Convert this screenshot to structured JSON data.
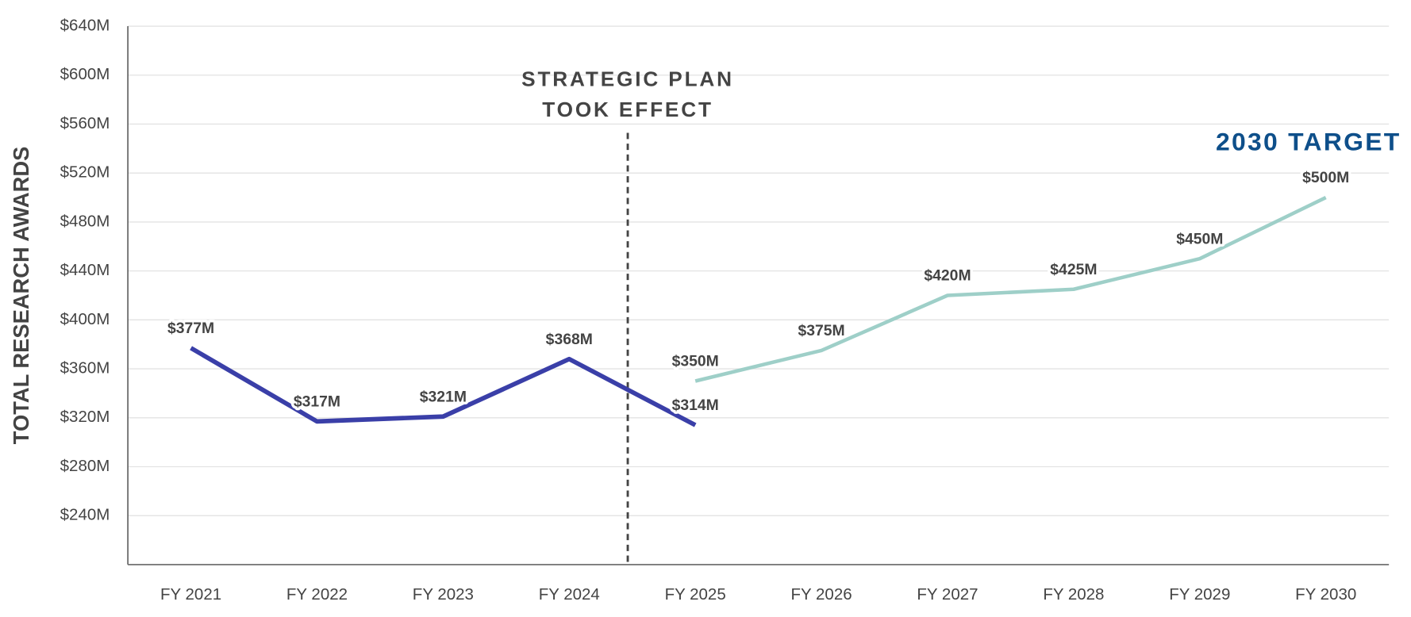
{
  "chart_data": {
    "type": "line",
    "ylabel": "TOTAL RESEARCH AWARDS",
    "categories": [
      "FY 2021",
      "FY 2022",
      "FY 2023",
      "FY 2024",
      "FY 2025",
      "FY 2026",
      "FY 2027",
      "FY 2028",
      "FY 2029",
      "FY 2030"
    ],
    "series": [
      {
        "color": "#3a3fa8",
        "values": [
          377,
          317,
          321,
          368,
          314,
          null,
          null,
          null,
          null,
          null
        ],
        "value_labels": [
          "$377M",
          "$317M",
          "$321M",
          "$368M",
          "$314M",
          null,
          null,
          null,
          null,
          null
        ]
      },
      {
        "color": "#9ecfc8",
        "values": [
          null,
          null,
          null,
          null,
          350,
          375,
          420,
          425,
          450,
          500
        ],
        "value_labels": [
          null,
          null,
          null,
          null,
          "$350M",
          "$375M",
          "$420M",
          "$425M",
          "$450M",
          "$500M"
        ]
      }
    ],
    "ylim": [
      200,
      640
    ],
    "yticks": [
      {
        "value": 240,
        "label": "$240M"
      },
      {
        "value": 280,
        "label": "$280M"
      },
      {
        "value": 320,
        "label": "$320M"
      },
      {
        "value": 360,
        "label": "$360M"
      },
      {
        "value": 400,
        "label": "$400M"
      },
      {
        "value": 440,
        "label": "$440M"
      },
      {
        "value": 480,
        "label": "$480M"
      },
      {
        "value": 520,
        "label": "$520M"
      },
      {
        "value": 560,
        "label": "$560M"
      },
      {
        "value": 600,
        "label": "$600M"
      },
      {
        "value": 640,
        "label": "$640M"
      }
    ],
    "grid": true,
    "annotations": [
      {
        "text": [
          "STRATEGIC PLAN",
          "TOOK EFFECT"
        ]
      },
      {
        "text": "2030 TARGET"
      }
    ]
  }
}
